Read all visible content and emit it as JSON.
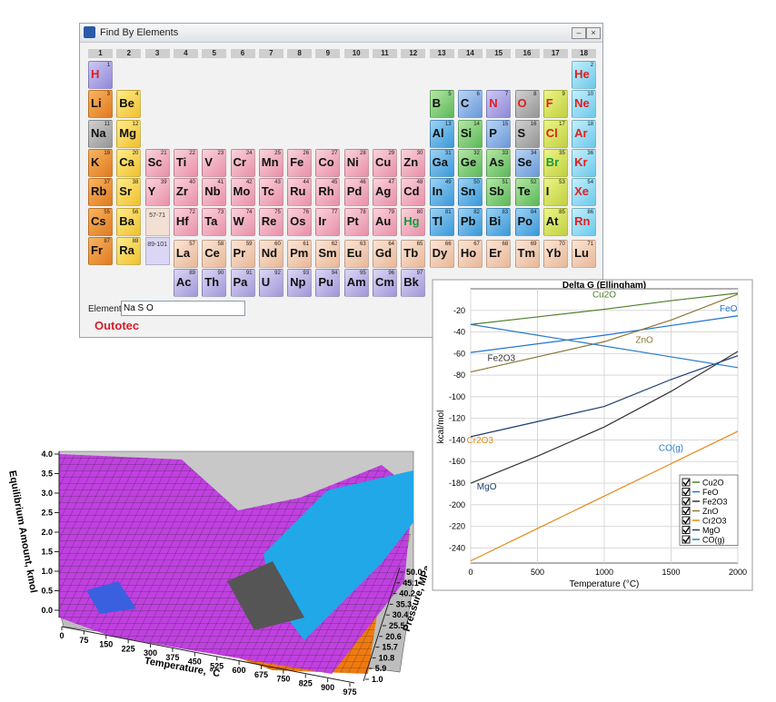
{
  "window": {
    "title": "Find By Elements",
    "groups": [
      1,
      2,
      3,
      4,
      5,
      6,
      7,
      8,
      9,
      10,
      11,
      12,
      13,
      14,
      15,
      16,
      17,
      18
    ],
    "elements": [
      {
        "number": 1,
        "symbol": "H"
      },
      {
        "number": 2,
        "symbol": "He"
      },
      {
        "number": 3,
        "symbol": "Li"
      },
      {
        "number": 4,
        "symbol": "Be"
      },
      {
        "number": 5,
        "symbol": "B"
      },
      {
        "number": 6,
        "symbol": "C"
      },
      {
        "number": 7,
        "symbol": "N"
      },
      {
        "number": 8,
        "symbol": "O"
      },
      {
        "number": 9,
        "symbol": "F"
      },
      {
        "number": 10,
        "symbol": "Ne"
      },
      {
        "number": 11,
        "symbol": "Na"
      },
      {
        "number": 12,
        "symbol": "Mg"
      },
      {
        "number": 13,
        "symbol": "Al"
      },
      {
        "number": 14,
        "symbol": "Si"
      },
      {
        "number": 15,
        "symbol": "P"
      },
      {
        "number": 16,
        "symbol": "S"
      },
      {
        "number": 17,
        "symbol": "Cl"
      },
      {
        "number": 18,
        "symbol": "Ar"
      },
      {
        "number": 19,
        "symbol": "K"
      },
      {
        "number": 20,
        "symbol": "Ca"
      },
      {
        "number": 21,
        "symbol": "Sc"
      },
      {
        "number": 22,
        "symbol": "Ti"
      },
      {
        "number": 23,
        "symbol": "V"
      },
      {
        "number": 24,
        "symbol": "Cr"
      },
      {
        "number": 25,
        "symbol": "Mn"
      },
      {
        "number": 26,
        "symbol": "Fe"
      },
      {
        "number": 27,
        "symbol": "Co"
      },
      {
        "number": 28,
        "symbol": "Ni"
      },
      {
        "number": 29,
        "symbol": "Cu"
      },
      {
        "number": 30,
        "symbol": "Zn"
      },
      {
        "number": 31,
        "symbol": "Ga"
      },
      {
        "number": 32,
        "symbol": "Ge"
      },
      {
        "number": 33,
        "symbol": "As"
      },
      {
        "number": 34,
        "symbol": "Se"
      },
      {
        "number": 35,
        "symbol": "Br"
      },
      {
        "number": 36,
        "symbol": "Kr"
      },
      {
        "number": 37,
        "symbol": "Rb"
      },
      {
        "number": 38,
        "symbol": "Sr"
      },
      {
        "number": 39,
        "symbol": "Y"
      },
      {
        "number": 40,
        "symbol": "Zr"
      },
      {
        "number": 41,
        "symbol": "Nb"
      },
      {
        "number": 42,
        "symbol": "Mo"
      },
      {
        "number": 43,
        "symbol": "Tc"
      },
      {
        "number": 44,
        "symbol": "Ru"
      },
      {
        "number": 45,
        "symbol": "Rh"
      },
      {
        "number": 46,
        "symbol": "Pd"
      },
      {
        "number": 47,
        "symbol": "Ag"
      },
      {
        "number": 48,
        "symbol": "Cd"
      },
      {
        "number": 49,
        "symbol": "In"
      },
      {
        "number": 50,
        "symbol": "Sn"
      },
      {
        "number": 51,
        "symbol": "Sb"
      },
      {
        "number": 52,
        "symbol": "Te"
      },
      {
        "number": 53,
        "symbol": "I"
      },
      {
        "number": 54,
        "symbol": "Xe"
      },
      {
        "number": 55,
        "symbol": "Cs"
      },
      {
        "number": 56,
        "symbol": "Ba"
      },
      {
        "number": 57,
        "symbol": "La"
      },
      {
        "number": 58,
        "symbol": "Ce"
      },
      {
        "number": 59,
        "symbol": "Pr"
      },
      {
        "number": 60,
        "symbol": "Nd"
      },
      {
        "number": 61,
        "symbol": "Pm"
      },
      {
        "number": 62,
        "symbol": "Sm"
      },
      {
        "number": 63,
        "symbol": "Eu"
      },
      {
        "number": 64,
        "symbol": "Gd"
      },
      {
        "number": 65,
        "symbol": "Tb"
      },
      {
        "number": 66,
        "symbol": "Dy"
      },
      {
        "number": 67,
        "symbol": "Ho"
      },
      {
        "number": 68,
        "symbol": "Er"
      },
      {
        "number": 69,
        "symbol": "Tm"
      },
      {
        "number": 70,
        "symbol": "Yb"
      },
      {
        "number": 71,
        "symbol": "Lu"
      },
      {
        "number": 72,
        "symbol": "Hf"
      },
      {
        "number": 73,
        "symbol": "Ta"
      },
      {
        "number": 74,
        "symbol": "W"
      },
      {
        "number": 75,
        "symbol": "Re"
      },
      {
        "number": 76,
        "symbol": "Os"
      },
      {
        "number": 77,
        "symbol": "Ir"
      },
      {
        "number": 78,
        "symbol": "Pt"
      },
      {
        "number": 79,
        "symbol": "Au"
      },
      {
        "number": 80,
        "symbol": "Hg"
      },
      {
        "number": 81,
        "symbol": "Tl"
      },
      {
        "number": 82,
        "symbol": "Pb"
      },
      {
        "number": 83,
        "symbol": "Bi"
      },
      {
        "number": 84,
        "symbol": "Po"
      },
      {
        "number": 85,
        "symbol": "At"
      },
      {
        "number": 86,
        "symbol": "Rn"
      },
      {
        "number": 87,
        "symbol": "Fr"
      },
      {
        "number": 88,
        "symbol": "Ra"
      },
      {
        "number": 89,
        "symbol": "Ac"
      },
      {
        "number": 90,
        "symbol": "Th"
      },
      {
        "number": 91,
        "symbol": "Pa"
      },
      {
        "number": 92,
        "symbol": "U"
      },
      {
        "number": 93,
        "symbol": "Np"
      },
      {
        "number": 94,
        "symbol": "Pu"
      },
      {
        "number": 95,
        "symbol": "Am"
      },
      {
        "number": 96,
        "symbol": "Cm"
      },
      {
        "number": 97,
        "symbol": "Bk"
      }
    ],
    "lanthanide_range": "57-71",
    "actinide_range": "89-101",
    "elements_label": "Elements:",
    "elements_input": "Na S O",
    "brand": "Outotec"
  },
  "chart_data": [
    {
      "type": "line",
      "title": "Delta G (Ellingham)",
      "x_label": "Temperature (°C)",
      "y_label": "kcal/mol",
      "x": [
        0,
        500,
        1000,
        1500,
        2000
      ],
      "xlim": [
        0,
        2000
      ],
      "xticks": [
        0,
        500,
        1000,
        1500,
        2000
      ],
      "ylim": [
        -254,
        0
      ],
      "yticks": [
        -20,
        -40,
        -60,
        -80,
        -100,
        -120,
        -140,
        -160,
        -180,
        -200,
        -220,
        -240
      ],
      "legend": "lower right",
      "series": [
        {
          "name": "Cu2O",
          "color": "#4f7f2a",
          "values": [
            -33,
            -26,
            -19,
            -11,
            -4
          ]
        },
        {
          "name": "FeO",
          "color": "#1f72d8",
          "values": [
            -59,
            -51,
            -43,
            -34,
            -25
          ]
        },
        {
          "name": "Fe2O3",
          "color": "#333333",
          "values": [
            -180,
            -155,
            -128,
            -95,
            -58
          ]
        },
        {
          "name": "ZnO",
          "color": "#8a7636",
          "values": [
            -77,
            -63,
            -49,
            -29,
            -5
          ]
        },
        {
          "name": "Cr2O3",
          "color": "#e08a1a",
          "values": [
            -252,
            -222,
            -192,
            -162,
            -132
          ]
        },
        {
          "name": "MgO",
          "color": "#1e3c6e",
          "values": [
            -137,
            -123,
            -109,
            -84,
            -62
          ]
        },
        {
          "name": "CO(g)",
          "color": "#2a7cc9",
          "values": [
            -33,
            -43,
            -53,
            -63,
            -73
          ]
        }
      ]
    },
    {
      "type": "surface3d",
      "x_label": "Temperature, °C",
      "y_label": "Equilibrium Amount, kmol",
      "z_label": "Pressure, MPa",
      "xlim": [
        0,
        975
      ],
      "xticks": [
        0,
        75,
        150,
        225,
        300,
        375,
        450,
        525,
        600,
        675,
        750,
        825,
        900,
        975
      ],
      "ylim": [
        0,
        4
      ],
      "yticks": [
        {
          "value": 0,
          "label": "0.0"
        },
        0.5,
        {
          "value": 1,
          "label": "1.0"
        },
        1.5,
        {
          "value": 2,
          "label": "2.0"
        },
        2.5,
        {
          "value": 3,
          "label": "3.0"
        },
        3.5,
        {
          "value": 4,
          "label": "4.0"
        }
      ],
      "zlim": [
        1,
        50
      ],
      "zticks": [
        {
          "value": 1,
          "label": "1.0"
        },
        5.9,
        10.8,
        15.7,
        20.6,
        25.5,
        30.4,
        35.3,
        40.2,
        45.1,
        {
          "value": 50,
          "label": "50.0"
        }
      ]
    }
  ]
}
